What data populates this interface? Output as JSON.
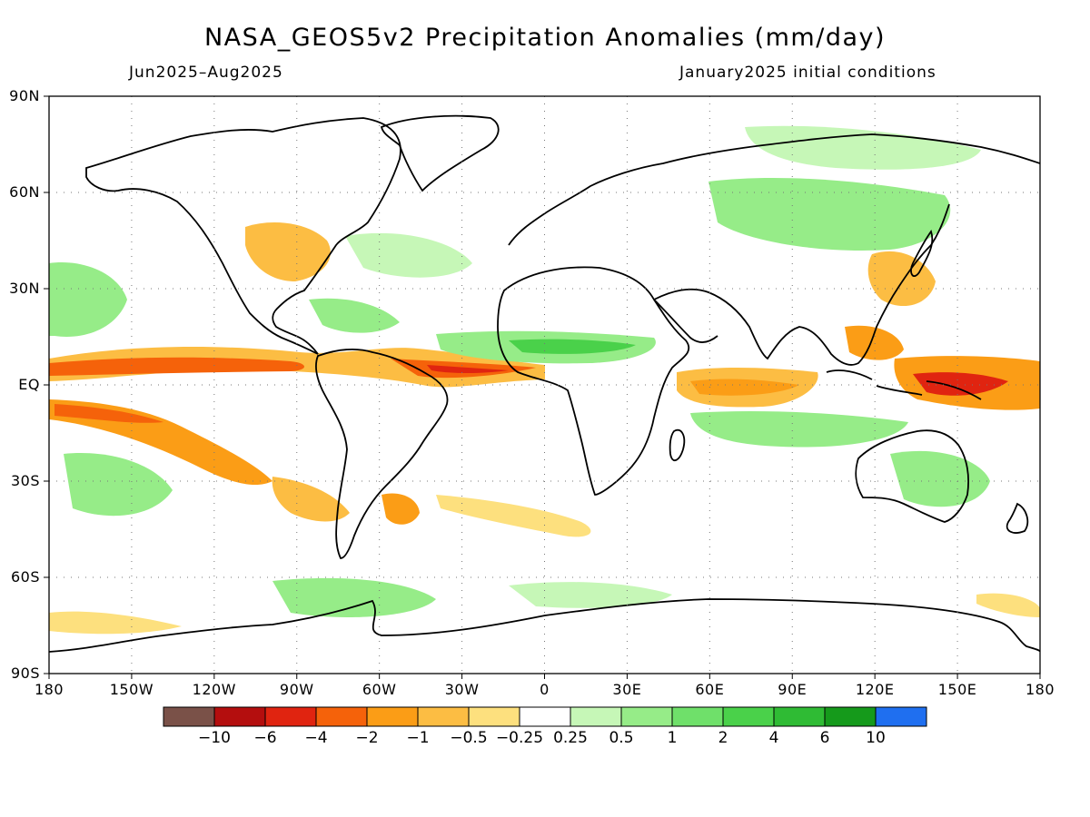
{
  "header": {
    "title": "NASA_GEOS5v2 Precipitation Anomalies (mm/day)",
    "period": "Jun2025–Aug2025",
    "init": "January2025 initial conditions"
  },
  "axes": {
    "lat_labels": [
      "90N",
      "60N",
      "30N",
      "EQ",
      "30S",
      "60S",
      "90S"
    ],
    "lon_labels": [
      "180",
      "150W",
      "120W",
      "90W",
      "60W",
      "30W",
      "0",
      "30E",
      "60E",
      "90E",
      "120E",
      "150E",
      "180"
    ],
    "grid": "dotted"
  },
  "colorbar": {
    "colors": [
      "#7a5148",
      "#b40e0e",
      "#e02410",
      "#f5620a",
      "#fb9d16",
      "#fcbd43",
      "#fde07e",
      "#ffffff",
      "#c6f7b7",
      "#96ec88",
      "#6fe06a",
      "#4ad14a",
      "#2fbb34",
      "#159a1b",
      "#1f6ff0"
    ],
    "tick_labels": [
      "−10",
      "−6",
      "−4",
      "−2",
      "−1",
      "−0.5",
      "−0.25",
      "0.25",
      "0.5",
      "1",
      "2",
      "4",
      "6",
      "10"
    ]
  },
  "map_features": {
    "dry_anomaly_regions": [
      "Equatorial Pacific ITCZ band",
      "Equatorial Atlantic",
      "Western Indian Ocean",
      "Western Pacific Warm Pool",
      "Eastern United States",
      "South Pacific Convergence Zone"
    ],
    "wet_anomaly_regions": [
      "Sahel",
      "Eurasia",
      "Indian Ocean south of equator",
      "Australia",
      "Southern Ocean"
    ]
  }
}
